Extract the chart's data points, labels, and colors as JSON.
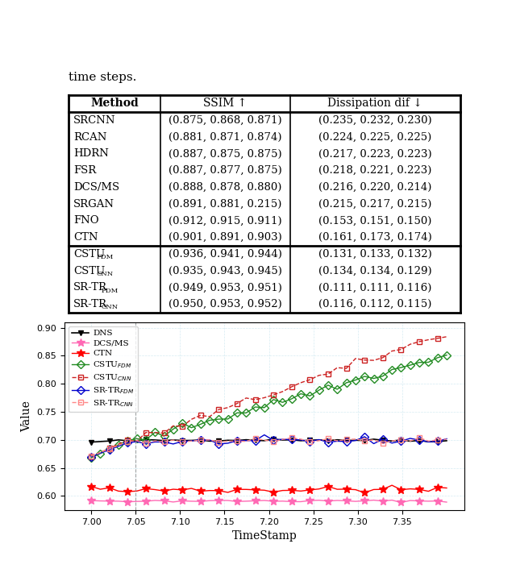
{
  "table": {
    "header": [
      "Method",
      "SSIM ↑",
      "Dissipation dif ↓"
    ],
    "rows_group1": [
      [
        "SRCNN",
        "(0.875, 0.868, 0.871)",
        "(0.235, 0.232, 0.230)"
      ],
      [
        "RCAN",
        "(0.881, 0.871, 0.874)",
        "(0.224, 0.225, 0.225)"
      ],
      [
        "HDRN",
        "(0.887, 0.875, 0.875)",
        "(0.217, 0.223, 0.223)"
      ],
      [
        "FSR",
        "(0.887, 0.877, 0.875)",
        "(0.218, 0.221, 0.223)"
      ],
      [
        "DCS/MS",
        "(0.888, 0.878, 0.880)",
        "(0.216, 0.220, 0.214)"
      ],
      [
        "SRGAN",
        "(0.891, 0.881, 0.215)",
        "(0.215, 0.217, 0.215)"
      ],
      [
        "FNO",
        "(0.912, 0.915, 0.911)",
        "(0.153, 0.151, 0.150)"
      ],
      [
        "CTN",
        "(0.901, 0.891, 0.903)",
        "(0.161, 0.173, 0.174)"
      ]
    ],
    "rows_group2": [
      [
        "CSTU_FDM",
        "(0.936, 0.941, 0.944)",
        "(0.131, 0.133, 0.132)"
      ],
      [
        "CSTU_CNN",
        "(0.935, 0.943, 0.945)",
        "(0.134, 0.134, 0.129)"
      ],
      [
        "SR-TR_FDM",
        "(0.949, 0.953, 0.951)",
        "(0.111, 0.111, 0.116)"
      ],
      [
        "SR-TR_CNN",
        "(0.950, 0.953, 0.952)",
        "(0.116, 0.112, 0.115)"
      ]
    ]
  },
  "chart": {
    "xlabel": "TimeStamp",
    "ylabel": "Value",
    "xlim": [
      6.97,
      7.42
    ],
    "ylim": [
      0.575,
      0.91
    ],
    "yticks": [
      0.6,
      0.65,
      0.7,
      0.75,
      0.8,
      0.85,
      0.9
    ],
    "xticks": [
      7.0,
      7.05,
      7.1,
      7.15,
      7.2,
      7.25,
      7.3,
      7.35
    ],
    "vline_x": 7.05,
    "series": {
      "DNS": {
        "color": "#000000",
        "marker": "v",
        "linestyle": "-",
        "linewidth": 1.2,
        "markersize": 4,
        "fillstyle": "full"
      },
      "DCS/MS": {
        "color": "#ff69b4",
        "marker": "*",
        "linestyle": "-",
        "linewidth": 1.0,
        "markersize": 7,
        "fillstyle": "full"
      },
      "CTN": {
        "color": "#ff0000",
        "marker": "*",
        "linestyle": "-",
        "linewidth": 1.0,
        "markersize": 7,
        "fillstyle": "full"
      },
      "CSTU_FDM": {
        "color": "#228B22",
        "marker": "D",
        "linestyle": "-",
        "linewidth": 1.0,
        "markersize": 5,
        "fillstyle": "none"
      },
      "CSTU_CNN": {
        "color": "#cc2222",
        "marker": "s",
        "linestyle": "--",
        "linewidth": 1.0,
        "markersize": 5,
        "fillstyle": "none"
      },
      "SR-TR_FDM": {
        "color": "#0000cc",
        "marker": "D",
        "linestyle": "-",
        "linewidth": 1.0,
        "markersize": 5,
        "fillstyle": "none"
      },
      "SR-TR_CNN": {
        "color": "#ff8888",
        "marker": "s",
        "linestyle": "--",
        "linewidth": 1.0,
        "markersize": 5,
        "fillstyle": "none"
      }
    },
    "legend_labels": {
      "DNS": "DNS",
      "DCS/MS": "DCS/MS",
      "CTN": "CTN",
      "CSTU_FDM": "CSTU$_{FDM}$",
      "CSTU_CNN": "CSTU$_{CNN}$",
      "SR-TR_FDM": "SR-TR$_{FDM}$",
      "SR-TR_CNN": "SR-TR$_{CNN}$"
    }
  },
  "preamble": "time steps."
}
